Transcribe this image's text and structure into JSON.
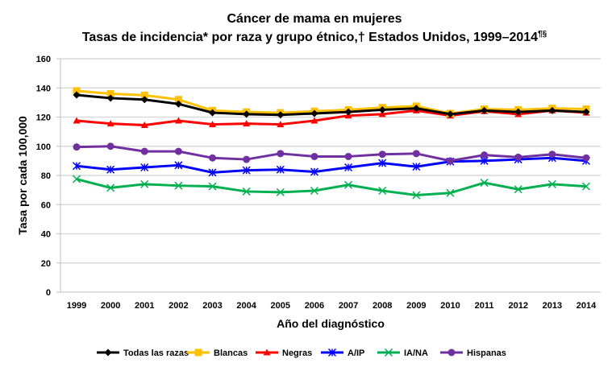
{
  "chart_data": {
    "type": "line",
    "title": "Cáncer de mama en mujeres",
    "subtitle": "Tasas de incidencia* por raza y grupo étnico,† Estados Unidos, 1999–2014",
    "subtitle_superscript": "¶§",
    "xlabel": "Año del diagnóstico",
    "ylabel": "Tasa por cada 100,000",
    "ylim": [
      0,
      160
    ],
    "yticks": [
      0,
      20,
      40,
      60,
      80,
      100,
      120,
      140,
      160
    ],
    "grid": true,
    "legend_placement": "bottom",
    "categories": [
      "1999",
      "2000",
      "2001",
      "2002",
      "2003",
      "2004",
      "2005",
      "2006",
      "2007",
      "2008",
      "2009",
      "2010",
      "2011",
      "2012",
      "2013",
      "2014"
    ],
    "series": [
      {
        "name": "Todas las razas",
        "color": "#000000",
        "marker": "diamond",
        "values": [
          135.2,
          133,
          132,
          129,
          123,
          122,
          121.5,
          122.5,
          123.5,
          125,
          126,
          122,
          124.5,
          123.5,
          124.5,
          123.5
        ]
      },
      {
        "name": "Blancas",
        "color": "#FFC000",
        "marker": "square",
        "values": [
          138,
          136,
          135,
          132,
          124.5,
          123.5,
          123,
          124,
          125,
          126.5,
          127.5,
          122.5,
          125.5,
          125,
          126,
          125.5
        ]
      },
      {
        "name": "Negras",
        "color": "#FF0000",
        "marker": "triangle",
        "values": [
          117.5,
          115.5,
          114.5,
          117.5,
          115,
          115.5,
          115,
          117.5,
          121,
          122,
          124.5,
          121,
          124,
          122,
          124.5,
          123
        ]
      },
      {
        "name": "A/IP",
        "color": "#0000FF",
        "marker": "asterisk",
        "values": [
          86.5,
          84,
          85.5,
          87,
          82,
          83.5,
          84,
          82.5,
          85.5,
          88.5,
          86,
          89.5,
          90,
          91,
          92,
          90
        ]
      },
      {
        "name": "IA/NA",
        "color": "#00B050",
        "marker": "x",
        "values": [
          77.5,
          71.5,
          74,
          73,
          72.5,
          69,
          68.5,
          69.5,
          73.5,
          69.5,
          66.5,
          68,
          75,
          70.5,
          74,
          72.5
        ]
      },
      {
        "name": "Hispanas",
        "color": "#7030A0",
        "marker": "circle",
        "values": [
          99.5,
          100,
          96.5,
          96.5,
          92,
          91,
          95,
          93,
          93,
          94.5,
          95,
          90,
          94,
          92.5,
          94.5,
          92
        ]
      }
    ]
  }
}
